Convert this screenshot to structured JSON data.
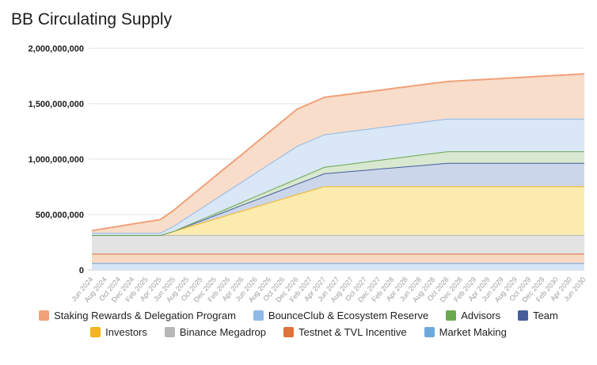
{
  "chart_data": {
    "type": "area",
    "stacked": true,
    "title": "BB Circulating Supply",
    "legend_position": "bottom",
    "grid": true,
    "unit_multiplier": 1000000,
    "values_unit": "millions of BB tokens",
    "ylim": [
      0,
      2000000000
    ],
    "ytick_values": [
      0,
      500000000,
      1000000000,
      1500000000,
      2000000000
    ],
    "ytick_labels": [
      "0",
      "500,000,000",
      "1,000,000,000",
      "1,500,000,000",
      "2,000,000,000"
    ],
    "x_labels": [
      "Jun 2024",
      "Aug 2024",
      "Oct 2024",
      "Dec 2024",
      "Feb 2025",
      "Apr 2025",
      "Jun 2025",
      "Aug 2025",
      "Oct 2025",
      "Dec 2025",
      "Feb 2026",
      "Apr 2026",
      "Jun 2026",
      "Aug 2026",
      "Oct 2026",
      "Dec 2026",
      "Feb 2027",
      "Apr 2027",
      "Jun 2027",
      "Aug 2027",
      "Oct 2027",
      "Dec 2027",
      "Feb 2028",
      "Apr 2028",
      "Jun 2028",
      "Aug 2028",
      "Oct 2028",
      "Dec 2028",
      "Feb 2029",
      "Apr 2029",
      "Jun 2029",
      "Aug 2029",
      "Oct 2029",
      "Dec 2029",
      "Feb 2030",
      "Apr 2030",
      "Jun 2030"
    ],
    "series": [
      {
        "name": "Market Making",
        "slug": "market-making",
        "line_color": "#6fa8dc",
        "fill_color": "#d5e5f5",
        "values": [
          63,
          63,
          63,
          63,
          63,
          63,
          63,
          63,
          63,
          63,
          63,
          63,
          63,
          63,
          63,
          63,
          63,
          63,
          63,
          63,
          63,
          63,
          63,
          63,
          63,
          63,
          63,
          63,
          63,
          63,
          63,
          63,
          63,
          63,
          63,
          63,
          63
        ]
      },
      {
        "name": "Testnet & TVL Incentive",
        "slug": "testnet-tvl-incentive",
        "line_color": "#e2703a",
        "fill_color": "#f7d9c4",
        "values": [
          84,
          84,
          84,
          84,
          84,
          84,
          84,
          84,
          84,
          84,
          84,
          84,
          84,
          84,
          84,
          84,
          84,
          84,
          84,
          84,
          84,
          84,
          84,
          84,
          84,
          84,
          84,
          84,
          84,
          84,
          84,
          84,
          84,
          84,
          84,
          84,
          84
        ]
      },
      {
        "name": "Binance Megadrop",
        "slug": "binance-megadrop",
        "line_color": "#b7b7b7",
        "fill_color": "#e3e3e3",
        "values": [
          168,
          168,
          168,
          168,
          168,
          168,
          168,
          168,
          168,
          168,
          168,
          168,
          168,
          168,
          168,
          168,
          168,
          168,
          168,
          168,
          168,
          168,
          168,
          168,
          168,
          168,
          168,
          168,
          168,
          168,
          168,
          168,
          168,
          168,
          168,
          168,
          168
        ]
      },
      {
        "name": "Investors",
        "slug": "investors",
        "line_color": "#f3b51e",
        "fill_color": "#fcebae",
        "values": [
          0,
          0,
          0,
          0,
          0,
          0,
          37,
          74,
          110,
          147,
          184,
          221,
          257,
          294,
          331,
          368,
          404,
          441,
          441,
          441,
          441,
          441,
          441,
          441,
          441,
          441,
          441,
          441,
          441,
          441,
          441,
          441,
          441,
          441,
          441,
          441,
          441
        ]
      },
      {
        "name": "Team",
        "slug": "team",
        "line_color": "#455d9c",
        "fill_color": "#ccd6ea",
        "values": [
          0,
          0,
          0,
          0,
          0,
          0,
          0,
          11,
          21,
          32,
          42,
          53,
          63,
          74,
          84,
          95,
          105,
          116,
          126,
          137,
          147,
          158,
          168,
          179,
          189,
          200,
          210,
          210,
          210,
          210,
          210,
          210,
          210,
          210,
          210,
          210,
          210
        ]
      },
      {
        "name": "Advisors",
        "slug": "advisors",
        "line_color": "#6aa84f",
        "fill_color": "#d9e8d0",
        "values": [
          0,
          0,
          0,
          0,
          0,
          0,
          0,
          5,
          11,
          16,
          21,
          26,
          32,
          37,
          42,
          47,
          53,
          58,
          63,
          68,
          74,
          79,
          84,
          89,
          95,
          100,
          105,
          105,
          105,
          105,
          105,
          105,
          105,
          105,
          105,
          105,
          105
        ]
      },
      {
        "name": "BounceClub & Ecosystem Reserve",
        "slug": "bounceclub-ecosystem-reserve",
        "line_color": "#8fb9e8",
        "fill_color": "#d9e7f6",
        "values": [
          20,
          20,
          20,
          20,
          20,
          20,
          47,
          75,
          102,
          129,
          157,
          184,
          212,
          239,
          267,
          294,
          294,
          294,
          294,
          294,
          294,
          294,
          294,
          294,
          294,
          294,
          294,
          294,
          294,
          294,
          294,
          294,
          294,
          294,
          294,
          294,
          294
        ]
      },
      {
        "name": "Staking Rewards & Delegation Program",
        "slug": "staking-rewards-delegation-program",
        "line_color": "#f0a179",
        "fill_color": "#f8ddca",
        "values": [
          20,
          40,
          60,
          80,
          100,
          120,
          141,
          162,
          184,
          205,
          226,
          247,
          268,
          289,
          311,
          332,
          333,
          334,
          334,
          334,
          334,
          334,
          335,
          335,
          335,
          335,
          335,
          342,
          349,
          356,
          363,
          370,
          377,
          384,
          391,
          398,
          405
        ]
      }
    ]
  }
}
